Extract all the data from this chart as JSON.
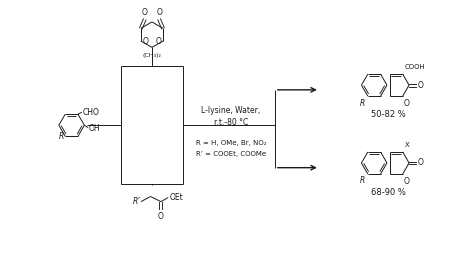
{
  "bg_color": "#ffffff",
  "line_color": "#1a1a1a",
  "text_color": "#1a1a1a",
  "fig_width": 4.74,
  "fig_height": 2.58,
  "dpi": 100,
  "conditions_line1": "L-lysine, Water,",
  "conditions_line2": "r.t.-80 °C",
  "r_group_text": "R = H, OMe, Br, NO₂",
  "r_prime_text": "R’ = COOEt, COOMe",
  "yield_top": "50-82 %",
  "yield_bot": "68-90 %",
  "font_size_conditions": 5.5,
  "font_size_labels": 5.0,
  "font_size_yield": 6.0,
  "font_size_atom": 5.5
}
